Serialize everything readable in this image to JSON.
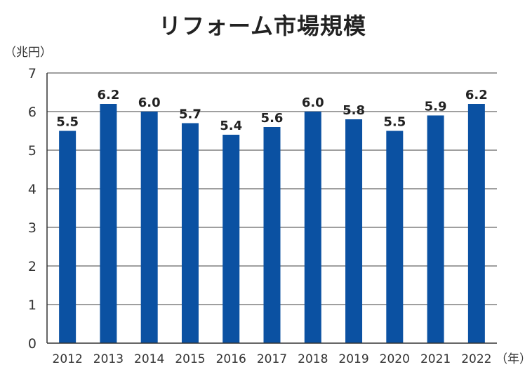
{
  "chart_data": {
    "type": "bar",
    "title": "リフォーム市場規模",
    "y_unit": "（兆円）",
    "x_unit": "（年）",
    "categories": [
      "2012",
      "2013",
      "2014",
      "2015",
      "2016",
      "2017",
      "2018",
      "2019",
      "2020",
      "2021",
      "2022"
    ],
    "values": [
      5.5,
      6.2,
      6.0,
      5.7,
      5.4,
      5.6,
      6.0,
      5.8,
      5.5,
      5.9,
      6.2
    ],
    "value_labels": [
      "5.5",
      "6.2",
      "6.0",
      "5.7",
      "5.4",
      "5.6",
      "6.0",
      "5.8",
      "5.5",
      "5.9",
      "6.2"
    ],
    "ylim": [
      0,
      7
    ],
    "yticks": [
      "0",
      "1",
      "2",
      "3",
      "4",
      "5",
      "6",
      "7"
    ],
    "grid": true,
    "colors": {
      "bar": "#0b51a2",
      "grid": "#666666",
      "axis": "#333333"
    }
  }
}
